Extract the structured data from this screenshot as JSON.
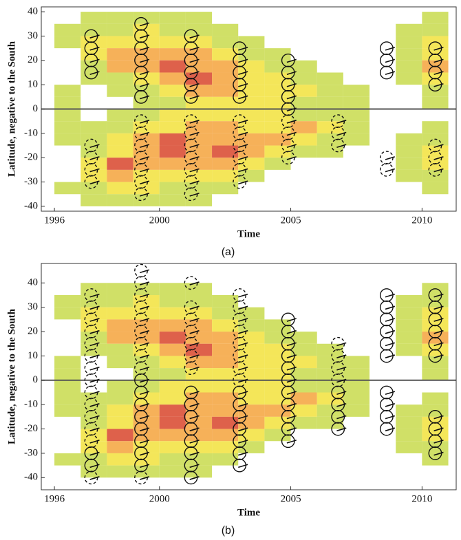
{
  "chart_data": [
    {
      "type": "heatmap",
      "caption": "(a)",
      "x_label": "Time",
      "y_label": "Latitude, negative to the South",
      "xlim": [
        1995.5,
        2011.3
      ],
      "ylim": [
        -42,
        42
      ],
      "xticks": [
        1996,
        2000,
        2005,
        2010
      ],
      "yticks": [
        -40,
        -30,
        -20,
        -10,
        0,
        10,
        20,
        30,
        40
      ],
      "heatmap": {
        "x_bins": [
          1996,
          1997,
          1998,
          1999,
          2000,
          2001,
          2002,
          2003,
          2004,
          2005,
          2006,
          2007,
          2008,
          2009,
          2010,
          2011
        ],
        "y_bins": [
          40,
          35,
          30,
          25,
          20,
          15,
          10,
          5,
          0,
          -5,
          -10,
          -15,
          -20,
          -25,
          -30,
          -35,
          -40
        ],
        "colors": [
          "#c8da4c",
          "#f2e23c",
          "#f4a33c",
          "#d8452b"
        ],
        "values": [
          [
            0,
            1,
            1,
            1,
            1,
            1,
            0,
            0,
            0,
            0,
            0,
            0,
            0,
            0,
            1
          ],
          [
            1,
            1,
            1,
            2,
            1,
            1,
            1,
            0,
            0,
            0,
            0,
            0,
            0,
            1,
            1
          ],
          [
            1,
            2,
            2,
            2,
            2,
            2,
            1,
            1,
            0,
            0,
            0,
            0,
            0,
            1,
            2
          ],
          [
            0,
            2,
            3,
            3,
            3,
            3,
            2,
            1,
            1,
            0,
            0,
            0,
            0,
            1,
            2
          ],
          [
            0,
            1,
            3,
            3,
            4,
            3,
            3,
            2,
            1,
            1,
            0,
            0,
            0,
            1,
            3
          ],
          [
            0,
            1,
            1,
            2,
            3,
            4,
            3,
            2,
            2,
            1,
            1,
            0,
            0,
            1,
            2
          ],
          [
            1,
            0,
            1,
            1,
            2,
            3,
            3,
            2,
            2,
            2,
            1,
            1,
            0,
            0,
            1
          ],
          [
            1,
            0,
            0,
            1,
            1,
            2,
            2,
            2,
            2,
            1,
            1,
            1,
            0,
            0,
            1
          ],
          [
            1,
            0,
            1,
            1,
            2,
            2,
            2,
            2,
            2,
            1,
            1,
            1,
            0,
            0,
            0
          ],
          [
            1,
            1,
            1,
            2,
            2,
            3,
            3,
            2,
            2,
            3,
            2,
            1,
            0,
            0,
            1
          ],
          [
            1,
            1,
            2,
            3,
            4,
            3,
            3,
            3,
            3,
            2,
            1,
            1,
            0,
            1,
            1
          ],
          [
            0,
            1,
            2,
            3,
            4,
            3,
            4,
            3,
            2,
            1,
            1,
            0,
            0,
            1,
            2
          ],
          [
            0,
            2,
            4,
            3,
            3,
            3,
            3,
            2,
            1,
            0,
            0,
            0,
            0,
            1,
            2
          ],
          [
            0,
            2,
            3,
            2,
            2,
            2,
            2,
            1,
            0,
            0,
            0,
            0,
            0,
            1,
            1
          ],
          [
            1,
            1,
            2,
            2,
            1,
            1,
            1,
            0,
            0,
            0,
            0,
            0,
            0,
            0,
            1
          ],
          [
            0,
            1,
            1,
            1,
            1,
            1,
            0,
            0,
            0,
            0,
            0,
            0,
            0,
            0,
            0
          ]
        ]
      },
      "solid_glyphs": {
        "x": [
          1997.4,
          1997.4,
          1997.4,
          1997.4,
          1999.3,
          1999.3,
          1999.3,
          1999.3,
          1999.3,
          1999.3,
          1999.3,
          2001.2,
          2001.2,
          2001.2,
          2001.2,
          2001.2,
          2001.2,
          2003.05,
          2003.05,
          2003.05,
          2003.05,
          2003.05,
          2004.9,
          2004.9,
          2004.9,
          2004.9,
          2004.9,
          2008.65,
          2008.65,
          2008.65,
          2010.5,
          2010.5,
          2010.5,
          2010.5
        ],
        "y": [
          30,
          25,
          20,
          15,
          35,
          30,
          25,
          20,
          15,
          10,
          5,
          30,
          25,
          20,
          15,
          10,
          5,
          25,
          20,
          15,
          10,
          5,
          20,
          15,
          10,
          5,
          0,
          25,
          20,
          15,
          25,
          20,
          15,
          10
        ]
      },
      "dashed_glyphs": {
        "x": [
          1997.4,
          1997.4,
          1997.4,
          1997.4,
          1999.3,
          1999.3,
          1999.3,
          1999.3,
          1999.3,
          1999.3,
          1999.3,
          2001.2,
          2001.2,
          2001.2,
          2001.2,
          2001.2,
          2001.2,
          2001.2,
          2003.05,
          2003.05,
          2003.05,
          2003.05,
          2003.05,
          2003.05,
          2004.9,
          2004.9,
          2004.9,
          2004.9,
          2006.8,
          2006.8,
          2006.8,
          2008.65,
          2008.65,
          2010.5,
          2010.5,
          2010.5
        ],
        "y": [
          -15,
          -20,
          -25,
          -30,
          -5,
          -10,
          -15,
          -20,
          -25,
          -30,
          -35,
          -5,
          -10,
          -15,
          -20,
          -25,
          -30,
          -35,
          -5,
          -10,
          -15,
          -20,
          -25,
          -30,
          -5,
          -10,
          -15,
          -20,
          -5,
          -10,
          -15,
          -20,
          -25,
          -15,
          -20,
          -25
        ]
      }
    },
    {
      "type": "heatmap",
      "caption": "(b)",
      "x_label": "Time",
      "y_label": "Latitude, negative to the South",
      "xlim": [
        1995.5,
        2011.3
      ],
      "ylim": [
        -45,
        48
      ],
      "xticks": [
        1996,
        2000,
        2005,
        2010
      ],
      "yticks": [
        -40,
        -30,
        -20,
        -10,
        0,
        10,
        20,
        30,
        40
      ],
      "heatmap": {
        "x_bins": [
          1996,
          1997,
          1998,
          1999,
          2000,
          2001,
          2002,
          2003,
          2004,
          2005,
          2006,
          2007,
          2008,
          2009,
          2010,
          2011
        ],
        "y_bins": [
          40,
          35,
          30,
          25,
          20,
          15,
          10,
          5,
          0,
          -5,
          -10,
          -15,
          -20,
          -25,
          -30,
          -35,
          -40
        ],
        "colors": [
          "#c8da4c",
          "#f2e23c",
          "#f4a33c",
          "#d8452b"
        ],
        "values": [
          [
            0,
            1,
            1,
            1,
            1,
            1,
            0,
            0,
            0,
            0,
            0,
            0,
            0,
            0,
            1
          ],
          [
            1,
            1,
            1,
            2,
            1,
            1,
            1,
            0,
            0,
            0,
            0,
            0,
            0,
            1,
            1
          ],
          [
            1,
            2,
            2,
            2,
            2,
            2,
            1,
            1,
            0,
            0,
            0,
            0,
            0,
            1,
            2
          ],
          [
            0,
            2,
            3,
            3,
            3,
            3,
            2,
            1,
            1,
            0,
            0,
            0,
            0,
            1,
            2
          ],
          [
            0,
            1,
            3,
            3,
            4,
            3,
            3,
            2,
            1,
            1,
            0,
            0,
            0,
            1,
            3
          ],
          [
            0,
            1,
            1,
            2,
            3,
            4,
            3,
            2,
            2,
            1,
            1,
            0,
            0,
            1,
            2
          ],
          [
            1,
            0,
            1,
            1,
            2,
            3,
            3,
            2,
            2,
            2,
            1,
            1,
            0,
            0,
            1
          ],
          [
            1,
            0,
            0,
            1,
            1,
            2,
            2,
            2,
            2,
            1,
            1,
            1,
            0,
            0,
            1
          ],
          [
            1,
            0,
            1,
            1,
            2,
            2,
            2,
            2,
            2,
            1,
            1,
            1,
            0,
            0,
            0
          ],
          [
            1,
            1,
            1,
            2,
            2,
            3,
            3,
            2,
            2,
            3,
            2,
            1,
            0,
            0,
            1
          ],
          [
            1,
            1,
            2,
            3,
            4,
            3,
            3,
            3,
            3,
            2,
            1,
            1,
            0,
            1,
            1
          ],
          [
            0,
            1,
            2,
            3,
            4,
            3,
            4,
            3,
            2,
            1,
            1,
            0,
            0,
            1,
            2
          ],
          [
            0,
            2,
            4,
            3,
            3,
            3,
            3,
            2,
            1,
            0,
            0,
            0,
            0,
            1,
            2
          ],
          [
            0,
            2,
            3,
            2,
            2,
            2,
            2,
            1,
            0,
            0,
            0,
            0,
            0,
            1,
            1
          ],
          [
            1,
            1,
            2,
            2,
            1,
            1,
            1,
            0,
            0,
            0,
            0,
            0,
            0,
            0,
            1
          ],
          [
            0,
            1,
            1,
            1,
            1,
            1,
            0,
            0,
            0,
            0,
            0,
            0,
            0,
            0,
            0
          ]
        ]
      },
      "solid_glyphs": {
        "x": [
          1997.4,
          1997.4,
          1999.3,
          1999.3,
          1999.3,
          1999.3,
          1999.3,
          1999.3,
          1999.3,
          1999.3,
          2001.2,
          2001.2,
          2001.2,
          2001.2,
          2001.2,
          2001.2,
          2001.2,
          2001.2,
          2003.05,
          2003.05,
          2003.05,
          2003.05,
          2003.05,
          2003.05,
          2003.05,
          2004.9,
          2004.9,
          2004.9,
          2004.9,
          2004.9,
          2004.9,
          2004.9,
          2004.9,
          2004.9,
          2004.9,
          2004.9,
          2006.8,
          2006.8,
          2006.8,
          2006.8,
          2008.65,
          2008.65,
          2008.65,
          2008.65,
          2008.65,
          2008.65,
          2008.65,
          2008.65,
          2008.65,
          2008.65,
          2010.5,
          2010.5,
          2010.5,
          2010.5,
          2010.5,
          2010.5,
          2010.5,
          2010.5,
          2010.5,
          2010.5
        ],
        "y": [
          -30,
          -35,
          0,
          -5,
          -10,
          -15,
          -20,
          -25,
          -30,
          -35,
          -5,
          -10,
          -15,
          -20,
          -25,
          -30,
          -35,
          -40,
          -5,
          -10,
          -15,
          -20,
          -25,
          -30,
          -35,
          25,
          20,
          15,
          10,
          5,
          0,
          -5,
          -10,
          -15,
          -20,
          -25,
          -5,
          -10,
          -15,
          -20,
          35,
          30,
          25,
          20,
          15,
          10,
          -5,
          -10,
          -15,
          -20,
          35,
          30,
          25,
          20,
          15,
          10,
          -15,
          -20,
          -25,
          -30
        ]
      },
      "dashed_glyphs": {
        "x": [
          1997.4,
          1997.4,
          1997.4,
          1997.4,
          1997.4,
          1997.4,
          1997.4,
          1997.4,
          1997.4,
          1997.4,
          1997.4,
          1997.4,
          1997.4,
          1997.4,
          1999.3,
          1999.3,
          1999.3,
          1999.3,
          1999.3,
          1999.3,
          1999.3,
          1999.3,
          1999.3,
          1999.3,
          2001.2,
          2001.2,
          2001.2,
          2001.2,
          2001.2,
          2001.2,
          2001.2,
          2003.05,
          2003.05,
          2003.05,
          2003.05,
          2003.05,
          2003.05,
          2003.05,
          2003.05,
          2006.8,
          2006.8,
          2006.8,
          2006.8
        ],
        "y": [
          35,
          30,
          25,
          20,
          15,
          10,
          5,
          0,
          -5,
          -10,
          -15,
          -20,
          -25,
          -40,
          45,
          40,
          35,
          30,
          25,
          20,
          15,
          10,
          5,
          -40,
          40,
          30,
          25,
          20,
          15,
          10,
          5,
          35,
          30,
          25,
          20,
          15,
          10,
          5,
          0,
          15,
          10,
          5,
          0
        ]
      }
    }
  ]
}
